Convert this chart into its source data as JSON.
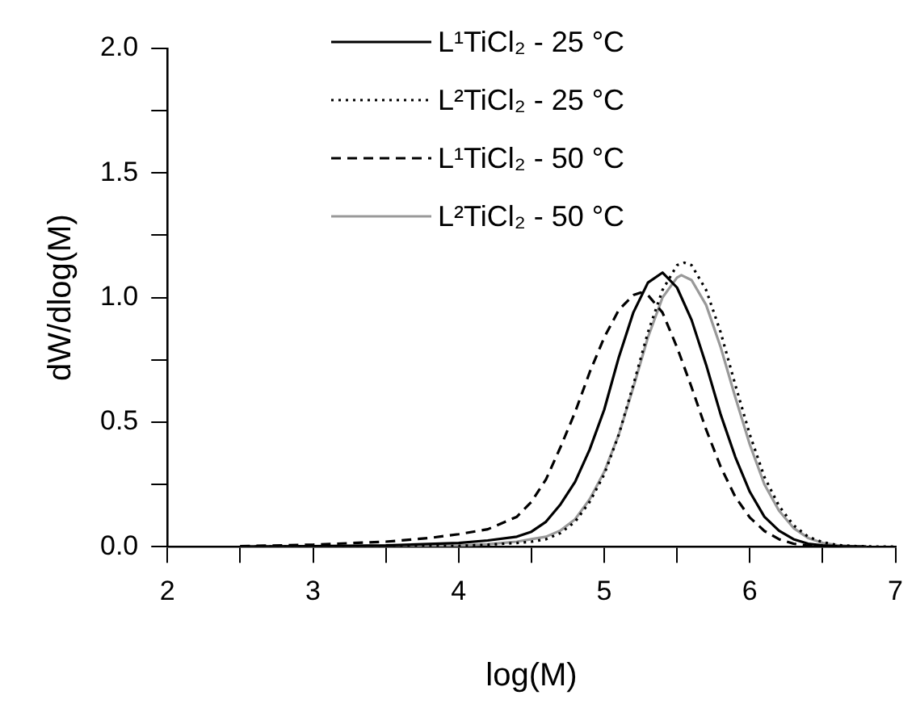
{
  "chart_data": {
    "type": "line",
    "xlabel": "log(M)",
    "ylabel": "dW/dlog(M)",
    "xlim": [
      2,
      7
    ],
    "ylim": [
      0,
      2
    ],
    "xticks": [
      2,
      {
        "value": 2.5,
        "label": null
      },
      3,
      {
        "value": 3.5,
        "label": null
      },
      4,
      {
        "value": 4.5,
        "label": null
      },
      5,
      {
        "value": 5.5,
        "label": null
      },
      6,
      {
        "value": 6.5,
        "label": null
      },
      7
    ],
    "yticks": [
      {
        "value": 0,
        "label": "0.0"
      },
      {
        "value": 0.25,
        "label": null
      },
      {
        "value": 0.5,
        "label": "0.5"
      },
      {
        "value": 0.75,
        "label": null
      },
      {
        "value": 1,
        "label": "1.0"
      },
      {
        "value": 1.25,
        "label": null
      },
      {
        "value": 1.5,
        "label": "1.5"
      },
      {
        "value": 1.75,
        "label": null
      },
      {
        "value": 2,
        "label": "2.0"
      }
    ],
    "grid": false,
    "legend": "top left",
    "marker": "none",
    "series": [
      {
        "name": "L¹TiCl₂ - 25 °C",
        "color": "#000000",
        "line_style": "solid",
        "x": [
          2.5,
          3,
          3.5,
          4,
          4.2,
          4.4,
          4.5,
          4.6,
          4.7,
          4.8,
          4.9,
          5,
          5.1,
          5.2,
          5.3,
          5.4,
          5.5,
          5.6,
          5.7,
          5.8,
          5.9,
          6,
          6.1,
          6.2,
          6.3,
          6.4,
          6.5,
          6.6,
          6.8
        ],
        "values": [
          0,
          0.002,
          0.005,
          0.015,
          0.025,
          0.04,
          0.06,
          0.1,
          0.17,
          0.26,
          0.39,
          0.55,
          0.76,
          0.94,
          1.06,
          1.1,
          1.04,
          0.91,
          0.73,
          0.53,
          0.36,
          0.22,
          0.12,
          0.064,
          0.03,
          0.012,
          0.005,
          0.002,
          0
        ]
      },
      {
        "name": "L²TiCl₂ - 25 °C",
        "color": "#000000",
        "line_style": "dotted",
        "x": [
          2.5,
          3,
          3.5,
          4,
          4.2,
          4.4,
          4.5,
          4.6,
          4.7,
          4.8,
          4.9,
          5,
          5.1,
          5.2,
          5.3,
          5.4,
          5.5,
          5.55,
          5.6,
          5.7,
          5.8,
          5.9,
          6,
          6.1,
          6.2,
          6.3,
          6.4,
          6.5,
          6.6,
          6.7,
          6.8,
          7
        ],
        "values": [
          0,
          0.001,
          0.002,
          0.003,
          0.008,
          0.015,
          0.02,
          0.03,
          0.055,
          0.1,
          0.18,
          0.29,
          0.45,
          0.65,
          0.86,
          1.03,
          1.13,
          1.14,
          1.13,
          1.03,
          0.86,
          0.65,
          0.45,
          0.28,
          0.164,
          0.086,
          0.04,
          0.018,
          0.007,
          0.003,
          0.001,
          0
        ]
      },
      {
        "name": "L¹TiCl₂ - 50 °C",
        "color": "#000000",
        "line_style": "dashed",
        "x": [
          2.5,
          3,
          3.5,
          3.8,
          4,
          4.2,
          4.4,
          4.5,
          4.6,
          4.7,
          4.8,
          4.9,
          5,
          5.1,
          5.2,
          5.25,
          5.3,
          5.4,
          5.5,
          5.6,
          5.7,
          5.8,
          5.9,
          6,
          6.1,
          6.2,
          6.3,
          6.4,
          6.5
        ],
        "values": [
          0.002,
          0.008,
          0.02,
          0.035,
          0.05,
          0.07,
          0.12,
          0.18,
          0.27,
          0.4,
          0.54,
          0.7,
          0.84,
          0.95,
          1.01,
          1.02,
          1.01,
          0.94,
          0.8,
          0.64,
          0.47,
          0.32,
          0.2,
          0.117,
          0.063,
          0.03,
          0.012,
          0.004,
          0.001
        ]
      },
      {
        "name": "L²TiCl₂ - 50 °C",
        "color": "#999999",
        "line_style": "solid",
        "x": [
          2.5,
          3,
          3.5,
          4,
          4.2,
          4.4,
          4.5,
          4.6,
          4.7,
          4.8,
          4.9,
          5,
          5.1,
          5.2,
          5.3,
          5.4,
          5.5,
          5.53,
          5.6,
          5.7,
          5.8,
          5.9,
          6,
          6.1,
          6.2,
          6.3,
          6.4,
          6.5,
          6.6,
          6.7,
          6.8
        ],
        "values": [
          0,
          0.001,
          0.002,
          0.004,
          0.01,
          0.02,
          0.03,
          0.04,
          0.065,
          0.11,
          0.19,
          0.3,
          0.45,
          0.64,
          0.84,
          1,
          1.08,
          1.09,
          1.07,
          0.97,
          0.8,
          0.6,
          0.41,
          0.25,
          0.145,
          0.075,
          0.035,
          0.015,
          0.006,
          0.002,
          0
        ]
      }
    ]
  }
}
